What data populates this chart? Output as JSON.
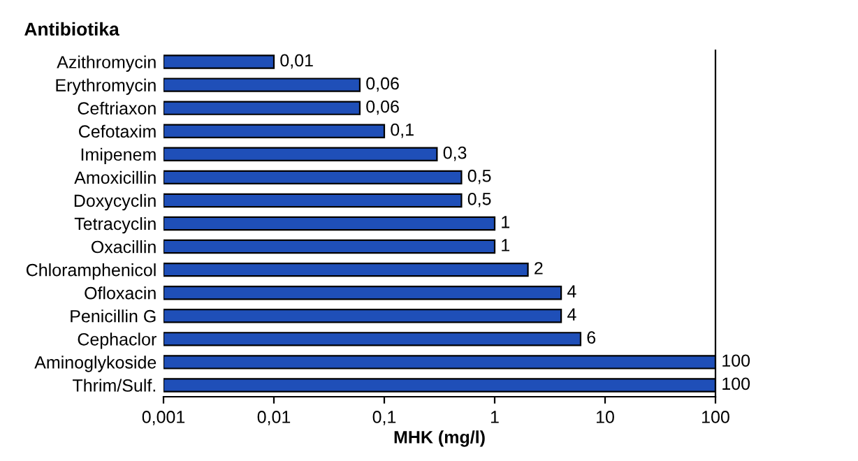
{
  "chart_data": {
    "type": "bar",
    "orientation": "horizontal",
    "title": "Antibiotika",
    "xlabel": "MHK (mg/l)",
    "categories": [
      "Azithromycin",
      "Erythromycin",
      "Ceftriaxon",
      "Cefotaxim",
      "Imipenem",
      "Amoxicillin",
      "Doxycyclin",
      "Tetracyclin",
      "Oxacillin",
      "Chloramphenicol",
      "Ofloxacin",
      "Penicillin G",
      "Cephaclor",
      "Aminoglykoside",
      "Thrim/Sulf."
    ],
    "values": [
      0.01,
      0.06,
      0.06,
      0.1,
      0.3,
      0.5,
      0.5,
      1,
      1,
      2,
      4,
      4,
      6,
      100,
      100
    ],
    "value_labels": [
      "0,01",
      "0,06",
      "0,06",
      "0,1",
      "0,3",
      "0,5",
      "0,5",
      "1",
      "1",
      "2",
      "4",
      "4",
      "6",
      "100",
      "100"
    ],
    "color": "#1f4fb8",
    "log": "x",
    "xlim": [
      0.001,
      100
    ],
    "xticks": [
      {
        "value": 0.001,
        "label": "0,001"
      },
      {
        "value": 0.01,
        "label": "0,01"
      },
      {
        "value": 0.1,
        "label": "0,1"
      },
      1,
      10,
      100
    ],
    "grid": false,
    "legend": false
  }
}
